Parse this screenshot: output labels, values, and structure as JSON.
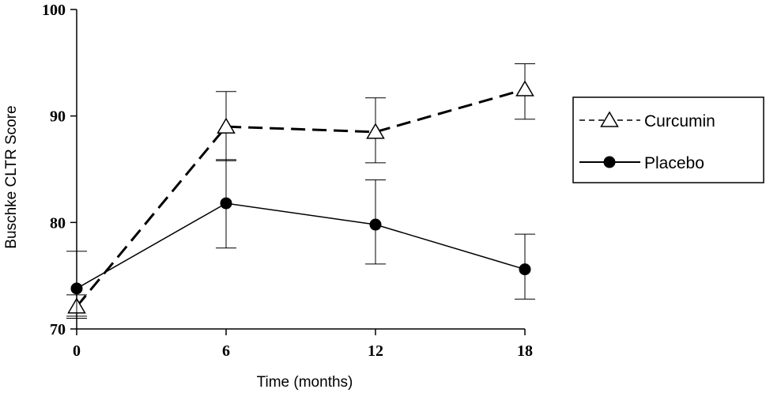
{
  "chart_data": {
    "type": "line",
    "title": "",
    "xlabel": "Time (months)",
    "ylabel": "Buschke CLTR Score",
    "x": [
      0,
      6,
      12,
      18
    ],
    "xticks": [
      "0",
      "6",
      "12",
      "18"
    ],
    "xlim": [
      0,
      18
    ],
    "ylim": [
      70,
      100
    ],
    "yticks": [
      "70",
      "80",
      "90",
      "100"
    ],
    "grid": false,
    "legend_position": "right",
    "series": [
      {
        "name": "Curcumin",
        "values": [
          72.1,
          89.0,
          88.5,
          92.5
        ],
        "error": [
          [
            71.2,
            73.2
          ],
          [
            85.8,
            92.3
          ],
          [
            85.6,
            91.7
          ],
          [
            89.7,
            94.9
          ]
        ],
        "marker": "open-triangle",
        "line_style": "dashed",
        "color": "#000000"
      },
      {
        "name": "Placebo",
        "values": [
          73.8,
          81.8,
          79.8,
          75.6
        ],
        "error": [
          [
            71.0,
            77.3
          ],
          [
            77.6,
            85.9
          ],
          [
            76.1,
            84.0
          ],
          [
            72.8,
            78.9
          ]
        ],
        "marker": "filled-circle",
        "line_style": "solid",
        "color": "#000000"
      }
    ]
  }
}
